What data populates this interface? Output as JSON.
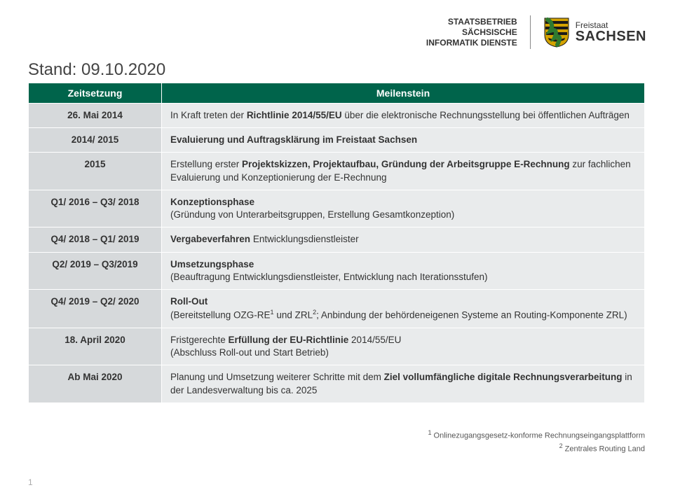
{
  "header": {
    "org_line1": "STAATSBETRIEB",
    "org_line2": "SÄCHSISCHE",
    "org_line3": "INFORMATIK DIENSTE",
    "state_small": "Freistaat",
    "state_big": "SACHSEN",
    "coat_colors": {
      "green": "#2f7a2f",
      "gold": "#d4a300",
      "black": "#1a1a1a"
    }
  },
  "title": "Stand: 09.10.2020",
  "table": {
    "header_bg": "#00644b",
    "row_time_bg": "#d6d9db",
    "row_milestone_bg": "#e9ebec",
    "columns": {
      "time": "Zeitsetzung",
      "milestone": "Meilenstein"
    },
    "rows": [
      {
        "time": "26. Mai 2014",
        "milestone_html": "In Kraft treten der <b>Richtlinie 2014/55/EU</b> über die elektronische Rechnungsstellung bei öffentlichen Aufträgen"
      },
      {
        "time": "2014/ 2015",
        "milestone_html": "<b>Evaluierung und Auftragsklärung im Freistaat Sachsen</b>"
      },
      {
        "time": "2015",
        "milestone_html": "Erstellung erster <b>Projektskizzen, Projektaufbau, Gründung der Arbeitsgruppe E-Rechnung</b> zur fachlichen Evaluierung und Konzeptionierung der E-Rechnung"
      },
      {
        "time": "Q1/ 2016 – Q3/ 2018",
        "milestone_html": "<b>Konzeptionsphase</b><br>(Gründung von Unterarbeitsgruppen, Erstellung Gesamtkonzeption)"
      },
      {
        "time": "Q4/ 2018 – Q1/ 2019",
        "milestone_html": "<b>Vergabeverfahren</b> Entwicklungsdienstleister"
      },
      {
        "time": "Q2/ 2019 – Q3/2019",
        "milestone_html": "<b>Umsetzungsphase</b><br>(Beauftragung Entwicklungsdienstleister, Entwicklung nach Iterationsstufen)"
      },
      {
        "time": "Q4/ 2019 – Q2/ 2020",
        "milestone_html": "<b>Roll-Out</b><br>(Bereitstellung OZG-RE<sup>1</sup> und ZRL<sup>2</sup>; Anbindung der behördeneigenen Systeme an Routing-Komponente ZRL)"
      },
      {
        "time": "18. April 2020",
        "milestone_html": "Fristgerechte <b>Erfüllung der EU-Richtlinie</b> 2014/55/EU<br>(Abschluss Roll-out und Start Betrieb)"
      },
      {
        "time": "Ab Mai 2020",
        "milestone_html": "Planung und Umsetzung weiterer Schritte mit dem <b>Ziel vollumfängliche digitale Rechnungsverarbeitung</b> in der Landesverwaltung bis ca. 2025"
      }
    ]
  },
  "footnotes": {
    "fn1": "Onlinezugangsgesetz-konforme Rechnungseingangsplattform",
    "fn2": "Zentrales Routing Land"
  },
  "page_number": "1"
}
